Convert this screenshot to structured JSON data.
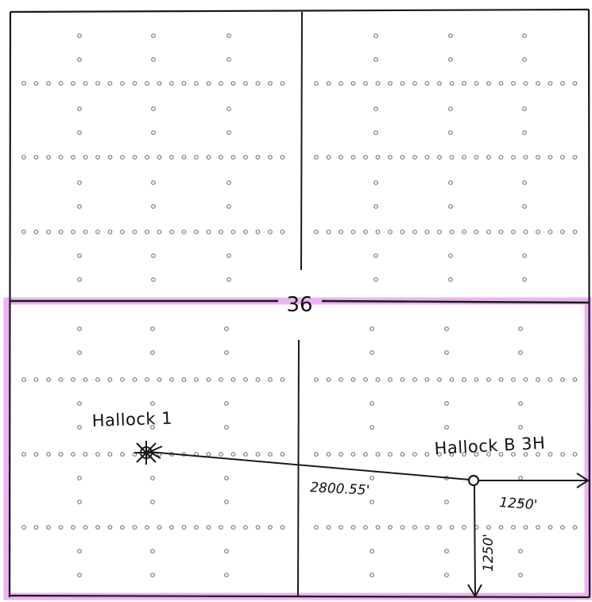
{
  "section": {
    "number": "36"
  },
  "wells": {
    "existing": {
      "name": "Hallock 1"
    },
    "proposed": {
      "name": "Hallock B 3H"
    }
  },
  "dimensions": {
    "between_wells": "2800.55'",
    "to_east_line": "1250'",
    "to_south_line": "1250'"
  },
  "colors": {
    "ink": "#1a1a1a",
    "grid_dots": "#7a7a7a",
    "highlight": "#e08ee6"
  }
}
